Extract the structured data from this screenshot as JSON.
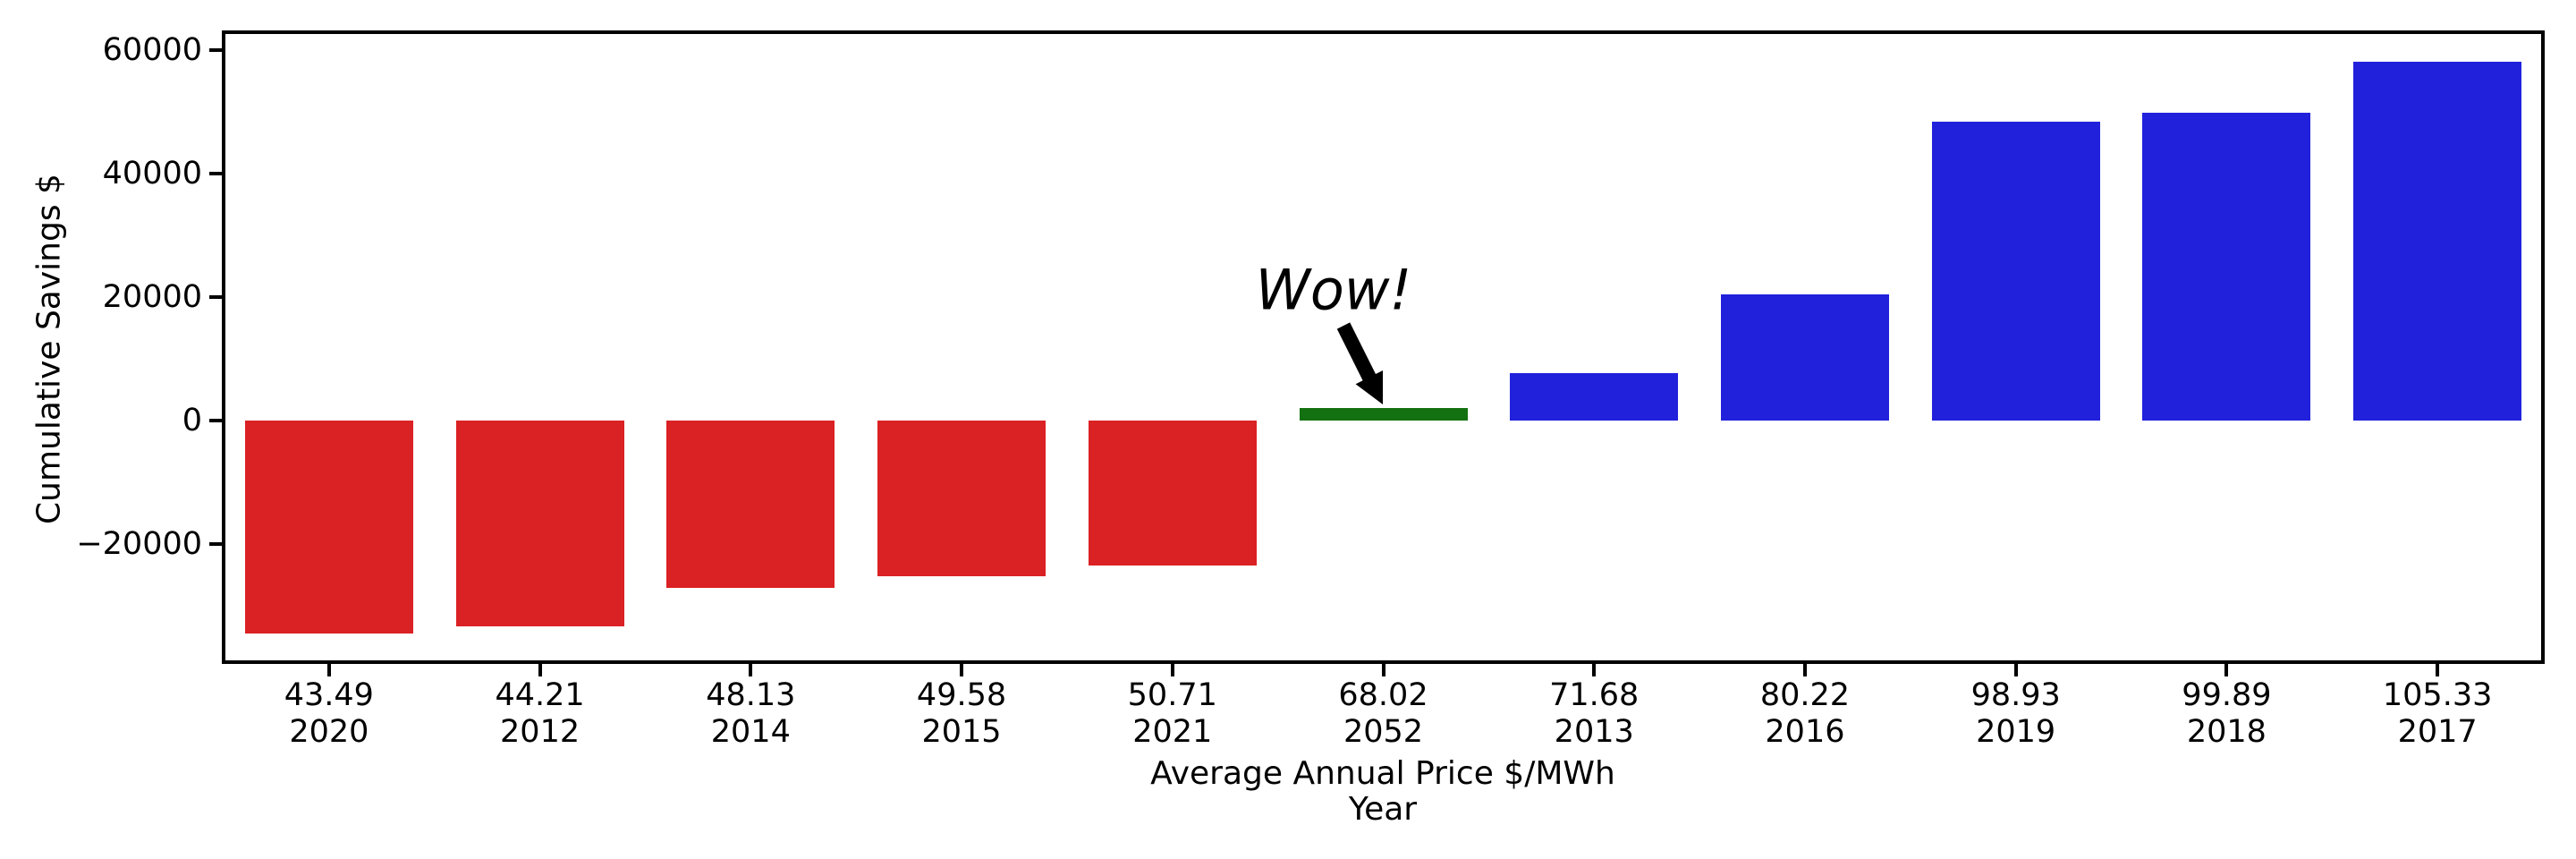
{
  "chart_data": {
    "type": "bar",
    "title": "",
    "ylabel": "Cumulative Savings $",
    "xlabel_line1": "Average Annual Price $/MWh",
    "xlabel_line2": "Year",
    "ylim": [
      -39100,
      62900
    ],
    "grid": false,
    "legend": "none",
    "categories_note": "each x tick has two stacked lines: average annual price then year",
    "bars": [
      {
        "price": "43.49",
        "year": "2020",
        "value": -34500,
        "color": "negative"
      },
      {
        "price": "44.21",
        "year": "2012",
        "value": -33400,
        "color": "negative"
      },
      {
        "price": "48.13",
        "year": "2014",
        "value": -27100,
        "color": "negative"
      },
      {
        "price": "49.58",
        "year": "2015",
        "value": -25200,
        "color": "negative"
      },
      {
        "price": "50.71",
        "year": "2021",
        "value": -23500,
        "color": "negative"
      },
      {
        "price": "68.02",
        "year": "2052",
        "value": 2100,
        "color": "highlight"
      },
      {
        "price": "71.68",
        "year": "2013",
        "value": 7700,
        "color": "positive"
      },
      {
        "price": "80.22",
        "year": "2016",
        "value": 20400,
        "color": "positive"
      },
      {
        "price": "98.93",
        "year": "2019",
        "value": 48400,
        "color": "positive"
      },
      {
        "price": "99.89",
        "year": "2018",
        "value": 49900,
        "color": "positive"
      },
      {
        "price": "105.33",
        "year": "2017",
        "value": 58100,
        "color": "positive"
      }
    ],
    "colors": {
      "negative": "#da2124",
      "positive": "#2121dc",
      "highlight": "#147111",
      "axis": "#000000"
    },
    "yticks": [
      {
        "value": -20000,
        "label": "−20000"
      },
      {
        "value": 0,
        "label": "0"
      },
      {
        "value": 20000,
        "label": "20000"
      },
      {
        "value": 40000,
        "label": "40000"
      },
      {
        "value": 60000,
        "label": "60000"
      }
    ],
    "annotation": {
      "text": "Wow!",
      "target_bar_index": 5
    }
  }
}
